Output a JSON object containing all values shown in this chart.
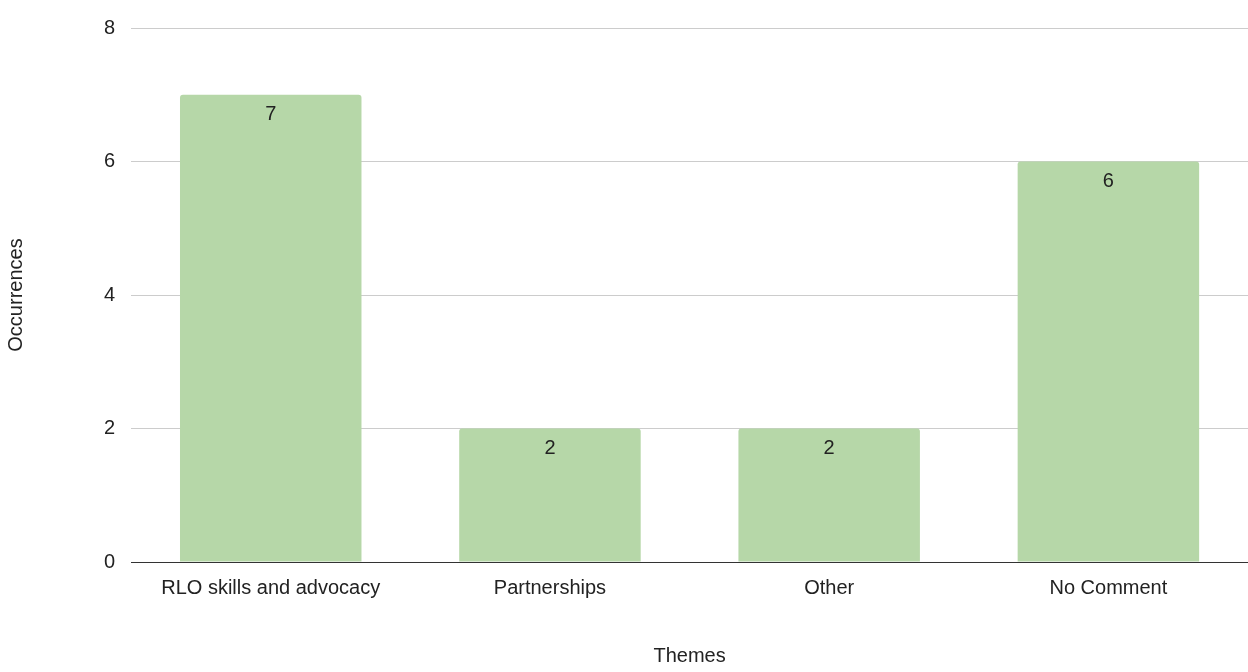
{
  "chart_data": {
    "type": "bar",
    "xlabel": "Themes",
    "ylabel": "Occurrences",
    "categories": [
      "RLO skills and advocacy",
      "Partnerships",
      "Other",
      "No Comment"
    ],
    "values": [
      7,
      2,
      2,
      6
    ],
    "color": "#b6d7a8",
    "ylim": [
      0,
      8
    ],
    "yticks": [
      0,
      2,
      4,
      6,
      8
    ],
    "grid": "y",
    "data_labels": true
  }
}
